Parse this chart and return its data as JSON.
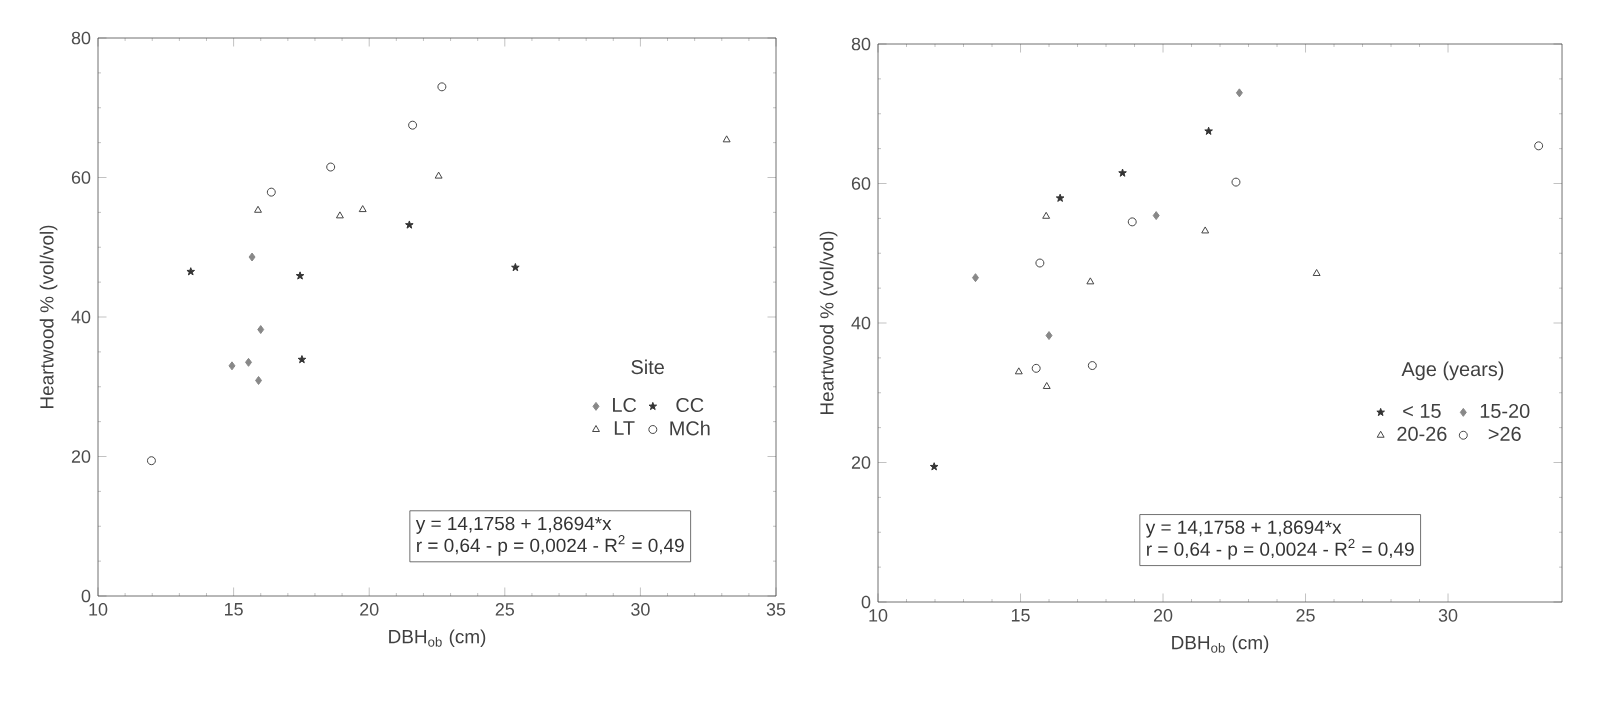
{
  "chart_data": [
    {
      "type": "scatter",
      "xlabel": "DBH$_{ob}$ (cm)",
      "ylabel": "Heartwood % (vol/vol)",
      "legend_title": "Site",
      "legend": "right",
      "xlim": [
        10,
        35
      ],
      "ylim": [
        0,
        80
      ],
      "xticks": [
        10,
        15,
        20,
        25,
        30,
        35
      ],
      "yticks": [
        0,
        20,
        40,
        60,
        80
      ],
      "annotations": [
        "y = 14,1758 + 1,8694*x",
        "r = 0,64  - p = 0,0024  - R$^{2}$ = 0,49"
      ],
      "series": [
        {
          "name": "LC",
          "color": "#888888",
          "marker": "diamond",
          "x": [
            15.68,
            16.0,
            14.94,
            15.55,
            15.92
          ],
          "values": [
            48.6,
            38.2,
            33.0,
            33.5,
            30.9
          ]
        },
        {
          "name": "CC",
          "color": "#333333",
          "marker": "star",
          "x": [
            13.42,
            17.45,
            17.52,
            21.48,
            25.39
          ],
          "values": [
            46.5,
            45.9,
            33.9,
            53.2,
            47.1
          ]
        },
        {
          "name": "LT",
          "color": "#444444",
          "marker": "triangle",
          "x": [
            15.9,
            18.92,
            19.76,
            22.56,
            33.18
          ],
          "values": [
            55.3,
            54.5,
            55.4,
            60.2,
            65.4
          ]
        },
        {
          "name": "MCh",
          "color": "#444444",
          "marker": "circle",
          "x": [
            16.39,
            18.58,
            21.6,
            22.68,
            11.97
          ],
          "values": [
            57.9,
            61.5,
            67.5,
            73.0,
            19.4
          ]
        }
      ]
    },
    {
      "type": "scatter",
      "xlabel": "DBH$_{ob}$ (cm)",
      "ylabel": "Heartwood % (vol/vol)",
      "legend_title": "Age (years)",
      "legend": "right",
      "xlim": [
        10,
        34
      ],
      "ylim": [
        0,
        80
      ],
      "xticks": [
        10,
        15,
        20,
        25,
        30
      ],
      "yticks": [
        0,
        20,
        40,
        60,
        80
      ],
      "annotations": [
        "y = 14,1758 + 1,8694*x",
        "r = 0,64  - p = 0,0024  - R$^{2}$ = 0,49"
      ],
      "series": [
        {
          "name": "< 15",
          "color": "#333333",
          "marker": "star",
          "x": [
            16.39,
            18.58,
            21.6,
            11.97
          ],
          "values": [
            57.9,
            61.5,
            67.5,
            19.4
          ]
        },
        {
          "name": "15-20",
          "color": "#888888",
          "marker": "diamond",
          "x": [
            13.42,
            16.0,
            19.76,
            22.68
          ],
          "values": [
            46.5,
            38.2,
            55.4,
            73.0
          ]
        },
        {
          "name": "20-26",
          "color": "#444444",
          "marker": "triangle",
          "x": [
            15.9,
            17.45,
            21.48,
            25.39,
            14.94,
            15.92
          ],
          "values": [
            55.3,
            45.9,
            53.2,
            47.1,
            33.0,
            30.9
          ]
        },
        {
          "name": ">26",
          "color": "#444444",
          "marker": "circle",
          "x": [
            15.68,
            18.92,
            22.56,
            33.18,
            15.55,
            17.52
          ],
          "values": [
            48.6,
            54.5,
            60.2,
            65.4,
            33.5,
            33.9
          ]
        }
      ]
    }
  ]
}
